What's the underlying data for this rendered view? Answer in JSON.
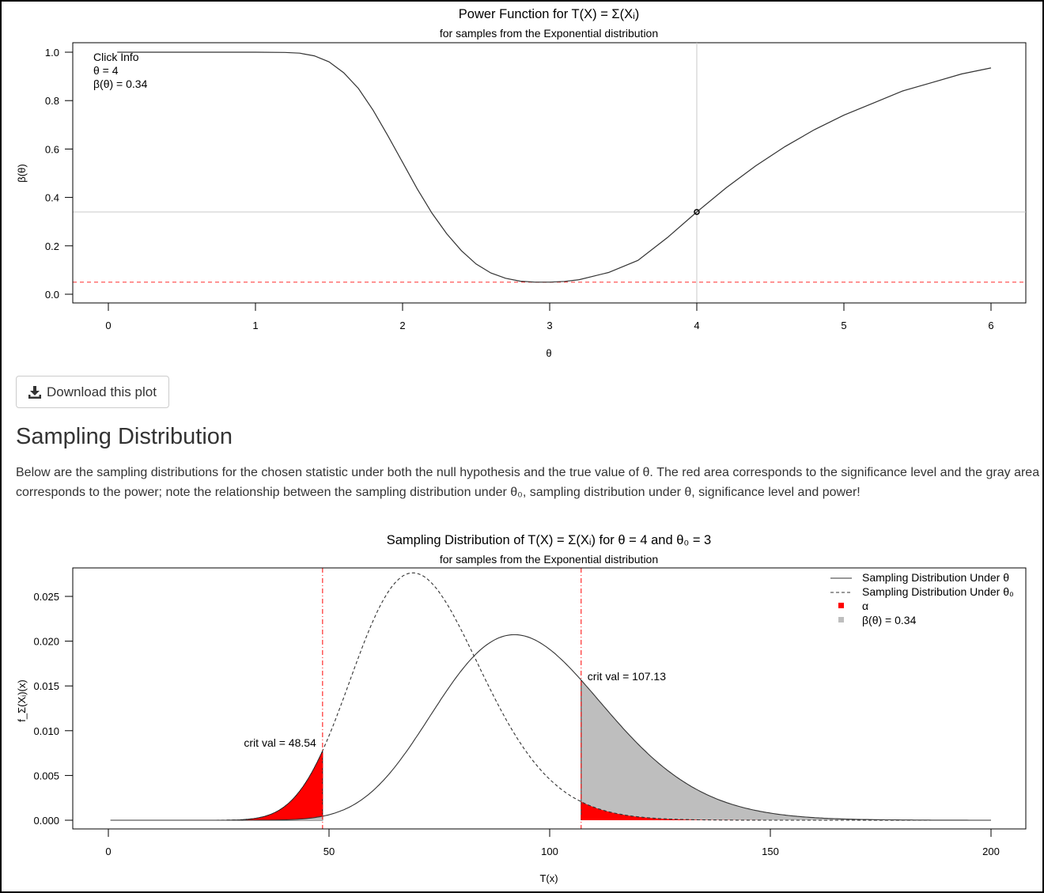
{
  "power_plot": {
    "title": "Power Function for T(X) = Σ(Xᵢ)",
    "subtitle": "for samples from the Exponential distribution",
    "click_info": [
      "Click Info",
      "θ = 4",
      "β(θ) = 0.34"
    ],
    "colors": {
      "curve": "#333333",
      "guide": "#c8c8c8",
      "alpha_line": "#ff3030"
    }
  },
  "download_button": {
    "label": "Download this plot",
    "icon": "download-icon"
  },
  "sampling_section": {
    "heading": "Sampling Distribution",
    "description": "Below are the sampling distributions for the chosen statistic under both the null hypothesis and the true value of θ. The red area corresponds to the significance level and the gray area corresponds to the power; note the relationship between the sampling distribution under θ₀, sampling distribution under θ, significance level and power!"
  },
  "sampling_plot": {
    "title": "Sampling Distribution of T(X) = Σ(Xᵢ) for θ = 4 and θ₀ = 3",
    "subtitle": "for samples from the Exponential distribution",
    "crit_labels": [
      "crit val = 48.54",
      "crit val = 107.13"
    ],
    "colors": {
      "alpha_fill": "#ff0000",
      "power_fill": "#bebebe",
      "crit_line": "#ff0000"
    }
  },
  "chart_data": [
    {
      "type": "line",
      "title": "Power Function for T(X) = Σ(Xᵢ)",
      "subtitle": "for samples from the Exponential distribution",
      "xlabel": "θ",
      "ylabel": "β(θ)",
      "xlim": [
        0,
        6
      ],
      "ylim": [
        0,
        1
      ],
      "x_ticks": [
        0,
        1,
        2,
        3,
        4,
        5,
        6
      ],
      "y_ticks": [
        0.0,
        0.2,
        0.4,
        0.6,
        0.8,
        1.0
      ],
      "x_tick_labels": [
        "0",
        "1",
        "2",
        "3",
        "4",
        "5",
        "6"
      ],
      "y_tick_labels": [
        "0.0",
        "0.2",
        "0.4",
        "0.6",
        "0.8",
        "1.0"
      ],
      "series": [
        {
          "x": [
            0.06,
            0.5,
            1.0,
            1.2,
            1.3,
            1.4,
            1.5,
            1.6,
            1.7,
            1.8,
            1.9,
            2.0,
            2.1,
            2.2,
            2.3,
            2.4,
            2.5,
            2.6,
            2.7,
            2.8,
            2.9,
            3.0,
            3.1,
            3.2,
            3.4,
            3.6,
            3.8,
            4.0,
            4.2,
            4.4,
            4.6,
            4.8,
            5.0,
            5.2,
            5.4,
            5.6,
            5.8,
            6.0
          ],
          "y": [
            1.0,
            1.0,
            1.0,
            0.999,
            0.996,
            0.985,
            0.96,
            0.915,
            0.85,
            0.76,
            0.655,
            0.545,
            0.435,
            0.335,
            0.25,
            0.18,
            0.125,
            0.088,
            0.066,
            0.054,
            0.05,
            0.05,
            0.053,
            0.06,
            0.09,
            0.14,
            0.234,
            0.34,
            0.44,
            0.53,
            0.61,
            0.68,
            0.74,
            0.79,
            0.84,
            0.875,
            0.91,
            0.935
          ]
        }
      ],
      "marked_point": {
        "x": 4,
        "y": 0.34
      },
      "alpha_level": 0.05,
      "grid": false
    },
    {
      "type": "area",
      "title": "Sampling Distribution of T(X) = Σ(Xᵢ) for θ = 4 and θ₀ = 3",
      "subtitle": "for samples from the Exponential distribution",
      "xlabel": "T(x)",
      "ylabel": "f_Σ(Xᵢ)(x)",
      "xlim": [
        0,
        200
      ],
      "ylim": [
        0,
        0.027
      ],
      "x_ticks": [
        0,
        50,
        100,
        150,
        200
      ],
      "y_ticks": [
        0.0,
        0.005,
        0.01,
        0.015,
        0.02,
        0.025
      ],
      "x_tick_labels": [
        "0",
        "50",
        "100",
        "150",
        "200"
      ],
      "y_tick_labels": [
        "0.000",
        "0.005",
        "0.010",
        "0.015",
        "0.020",
        "0.025"
      ],
      "legend": [
        "Sampling Distribution Under θ",
        "Sampling Distribution Under θ₀",
        "α",
        "β(θ) = 0.34"
      ],
      "legend_position": "top-right",
      "series": [
        {
          "name": "Sampling Distribution Under θ",
          "dist": "gamma",
          "shape": 24,
          "scale": 4
        },
        {
          "name": "Sampling Distribution Under θ₀",
          "dist": "gamma",
          "shape": 24,
          "scale": 3
        }
      ],
      "critical_values": [
        48.54,
        107.13
      ],
      "alpha_label": "α",
      "power": 0.34,
      "grid": false
    }
  ]
}
